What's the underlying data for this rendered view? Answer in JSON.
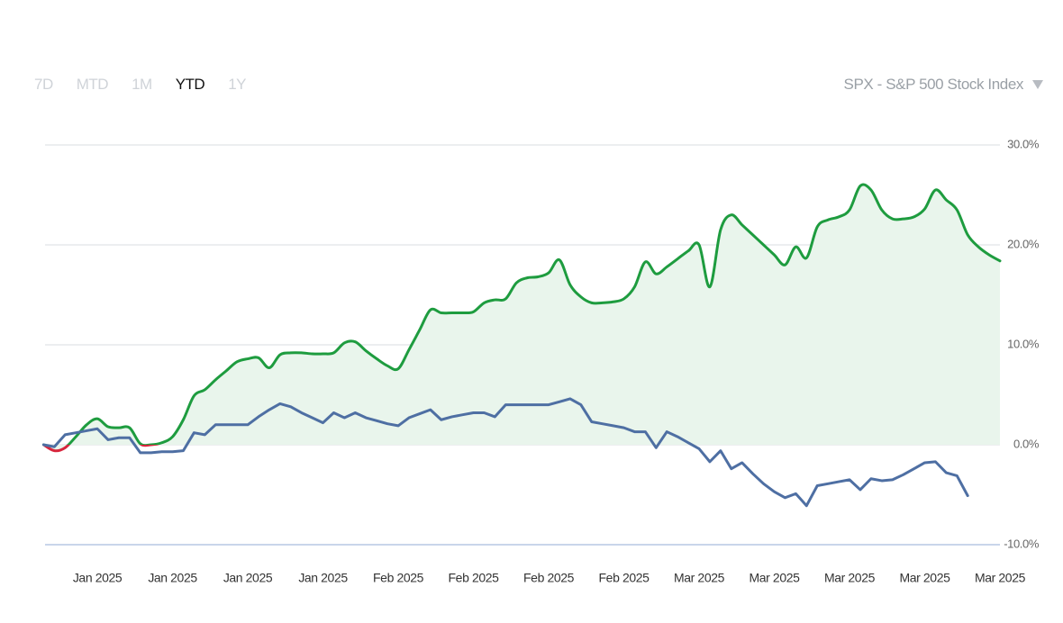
{
  "timeframes": {
    "options": [
      "7D",
      "MTD",
      "1M",
      "YTD",
      "1Y"
    ],
    "selected": "YTD"
  },
  "benchmark": "SPX - S&P 500 Stock Index",
  "chart_data": {
    "type": "line",
    "categories": [
      null,
      null,
      null,
      null,
      null,
      "Jan 2025",
      null,
      null,
      null,
      null,
      null,
      null,
      "Jan 2025",
      null,
      null,
      null,
      null,
      null,
      null,
      "Jan 2025",
      null,
      null,
      null,
      null,
      null,
      null,
      "Jan 2025",
      null,
      null,
      null,
      null,
      null,
      null,
      "Feb 2025",
      null,
      null,
      null,
      null,
      null,
      null,
      "Feb 2025",
      null,
      null,
      null,
      null,
      null,
      null,
      "Feb 2025",
      null,
      null,
      null,
      null,
      null,
      null,
      "Feb 2025",
      null,
      null,
      null,
      null,
      null,
      null,
      "Mar 2025",
      null,
      null,
      null,
      null,
      null,
      null,
      "Mar 2025",
      null,
      null,
      null,
      null,
      null,
      null,
      "Mar 2025",
      null,
      null,
      null,
      null,
      null,
      null,
      "Mar 2025",
      null,
      null,
      null,
      null,
      null,
      null,
      "Mar 2025"
    ],
    "series": [
      {
        "color": "#1e9c3f",
        "negative_color": "#d7263d",
        "fill": "#e9f5ec",
        "smooth": true,
        "values": [
          0,
          -0.6,
          -0.3,
          0.8,
          2,
          2.6,
          1.8,
          1.7,
          1.7,
          0.1,
          0,
          0.2,
          0.8,
          2.5,
          4.9,
          5.5,
          6.5,
          7.4,
          8.3,
          8.6,
          8.7,
          7.7,
          9.0,
          9.2,
          9.2,
          9.1,
          9.1,
          9.2,
          10.2,
          10.3,
          9.4,
          8.6,
          7.9,
          7.6,
          9.5,
          11.5,
          13.5,
          13.2,
          13.2,
          13.2,
          13.3,
          14.2,
          14.5,
          14.6,
          16.2,
          16.7,
          16.8,
          17.2,
          18.5,
          16.0,
          14.8,
          14.2,
          14.2,
          14.3,
          14.6,
          15.8,
          18.3,
          17.1,
          17.8,
          18.6,
          19.4,
          20.0,
          15.8,
          21.5,
          23.0,
          22.0,
          21.0,
          20.0,
          19.0,
          18.0,
          19.8,
          18.7,
          21.8,
          22.5,
          22.8,
          23.5,
          25.9,
          25.5,
          23.5,
          22.6,
          22.6,
          22.8,
          23.6,
          25.5,
          24.5,
          23.5,
          21.0,
          19.8,
          19.0,
          18.4
        ]
      },
      {
        "color": "#4e6fa3",
        "smooth": false,
        "values": [
          0,
          -0.2,
          1,
          1.2,
          1.4,
          1.6,
          0.5,
          0.7,
          0.7,
          -0.8,
          -0.8,
          -0.7,
          -0.7,
          -0.6,
          1.2,
          1.0,
          2.0,
          2.0,
          2.0,
          2.0,
          2.8,
          3.5,
          4.1,
          3.8,
          3.2,
          2.7,
          2.2,
          3.2,
          2.7,
          3.2,
          2.7,
          2.4,
          2.1,
          1.9,
          2.7,
          3.1,
          3.5,
          2.5,
          2.8,
          3.0,
          3.2,
          3.2,
          2.8,
          4.0,
          4.0,
          4.0,
          4.0,
          4.0,
          4.3,
          4.6,
          4.0,
          2.3,
          2.1,
          1.9,
          1.7,
          1.3,
          1.3,
          -0.3,
          1.3,
          0.8,
          0.2,
          -0.4,
          -1.7,
          -0.6,
          -2.4,
          -1.8,
          -2.9,
          -3.9,
          -4.7,
          -5.3,
          -4.9,
          -6.1,
          -4.1,
          -3.9,
          -3.7,
          -3.5,
          -4.5,
          -3.4,
          -3.6,
          -3.5,
          -3.0,
          -2.4,
          -1.8,
          -1.7,
          -2.8,
          -3.1,
          -5.1,
          null,
          null,
          null
        ]
      }
    ],
    "ylim": [
      -10,
      30
    ],
    "yticks": [
      {
        "value": 30,
        "label": "30.0%"
      },
      {
        "value": 20,
        "label": "20.0%"
      },
      {
        "value": 10,
        "label": "10.0%"
      },
      {
        "value": 0,
        "label": "0.0%"
      },
      {
        "value": -10,
        "label": "-10.0%"
      }
    ],
    "grid": true
  }
}
